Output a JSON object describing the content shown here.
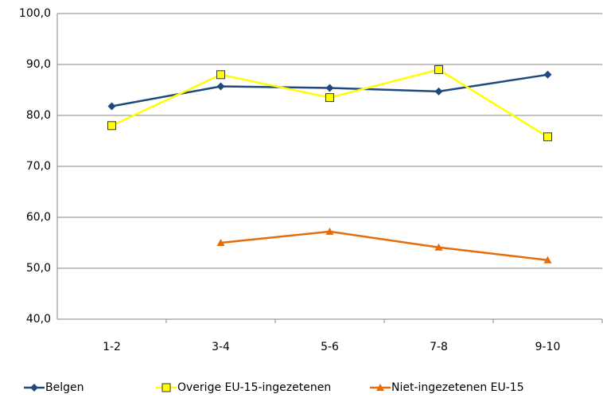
{
  "chart_data": {
    "type": "line",
    "categories": [
      "1-2",
      "3-4",
      "5-6",
      "7-8",
      "9-10"
    ],
    "series": [
      {
        "name": "Belgen",
        "color": "#1f497d",
        "marker": "diamond",
        "values": [
          81.8,
          85.7,
          85.4,
          84.7,
          88.0
        ]
      },
      {
        "name": "Overige EU-15-ingezetenen",
        "color": "#ffff00",
        "marker": "square",
        "values": [
          78.0,
          88.0,
          83.5,
          89.0,
          75.8
        ]
      },
      {
        "name": "Niet-ingezetenen EU-15",
        "color": "#e46c0a",
        "marker": "triangle",
        "values": [
          null,
          55.0,
          57.2,
          54.1,
          51.6
        ]
      }
    ],
    "ylim": [
      40,
      100
    ],
    "yticks": [
      {
        "value": 40,
        "label": "40,0"
      },
      {
        "value": 50,
        "label": "50,0"
      },
      {
        "value": 60,
        "label": "60,0"
      },
      {
        "value": 70,
        "label": "70,0"
      },
      {
        "value": 80,
        "label": "80,0"
      },
      {
        "value": 90,
        "label": "90,0"
      },
      {
        "value": 100,
        "label": "100,0"
      }
    ],
    "grid": true,
    "legend": "bottom"
  }
}
